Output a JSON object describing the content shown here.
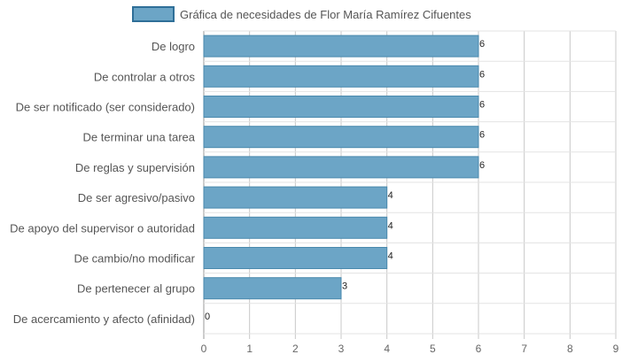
{
  "chart_data": {
    "type": "bar",
    "orientation": "horizontal",
    "categories": [
      "De logro",
      "De controlar a otros",
      "De ser notificado (ser considerado)",
      "De terminar una tarea",
      "De reglas y supervisión",
      "De ser agresivo/pasivo",
      "De apoyo del supervisor o autoridad",
      "De cambio/no modificar",
      "De pertenecer al grupo",
      "De acercamiento y afecto (afinidad)"
    ],
    "series": [
      {
        "name": "Gráfica de necesidades de Flor María Ramírez Cifuentes",
        "values": [
          6,
          6,
          6,
          6,
          6,
          4,
          4,
          4,
          3,
          0
        ],
        "color": "#6ca5c6",
        "border_color": "#4a89ad"
      }
    ],
    "xlim": [
      0,
      9
    ],
    "x_ticks": [
      "0",
      "1",
      "2",
      "3",
      "4",
      "5",
      "6",
      "7",
      "8",
      "9"
    ],
    "grid": true,
    "legend_position": "top",
    "data_labels": true
  }
}
